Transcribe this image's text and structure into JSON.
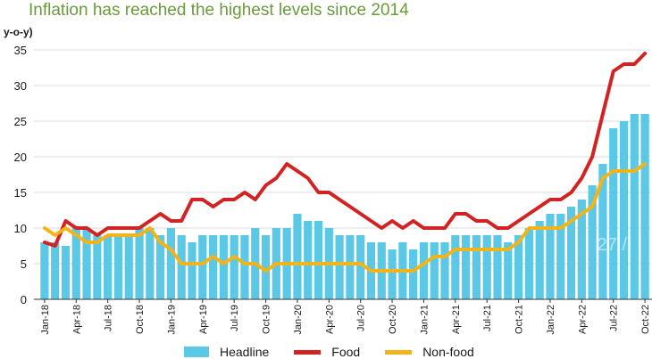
{
  "title": "Inflation has reached the highest levels since 2014",
  "unit_label": "y-o-y)",
  "watermark": "27 /",
  "colors": {
    "headline": "#5bc8e6",
    "food": "#d32222",
    "nonfood": "#f2b418",
    "title": "#6a9a3c"
  },
  "chart_data": {
    "type": "bar",
    "title": "Inflation has reached the highest levels since 2014",
    "ylabel": "y-o-y)",
    "xlabel": "",
    "ylim": [
      0,
      35
    ],
    "yticks": [
      0,
      5,
      10,
      15,
      20,
      25,
      30,
      35
    ],
    "grid": true,
    "legend_position": "bottom",
    "xtick_labels": [
      {
        "index": 0,
        "label": "Jan-18"
      },
      {
        "index": 3,
        "label": "Apr-18"
      },
      {
        "index": 6,
        "label": "Jul-18"
      },
      {
        "index": 9,
        "label": "Oct-18"
      },
      {
        "index": 12,
        "label": "Jan-19"
      },
      {
        "index": 15,
        "label": "Apr-19"
      },
      {
        "index": 18,
        "label": "Jul-19"
      },
      {
        "index": 21,
        "label": "Oct-19"
      },
      {
        "index": 24,
        "label": "Jan-20"
      },
      {
        "index": 27,
        "label": "Apr-20"
      },
      {
        "index": 30,
        "label": "Jul-20"
      },
      {
        "index": 33,
        "label": "Oct-20"
      },
      {
        "index": 36,
        "label": "Jan-21"
      },
      {
        "index": 39,
        "label": "Apr-21"
      },
      {
        "index": 42,
        "label": "Jul-21"
      },
      {
        "index": 45,
        "label": "Oct-21"
      },
      {
        "index": 48,
        "label": "Jan-22"
      },
      {
        "index": 51,
        "label": "Apr-22"
      },
      {
        "index": 54,
        "label": "Jul-22"
      },
      {
        "index": 57,
        "label": "Oct-22"
      }
    ],
    "months": [
      "Jan-18",
      "Feb-18",
      "Mar-18",
      "Apr-18",
      "May-18",
      "Jun-18",
      "Jul-18",
      "Aug-18",
      "Sep-18",
      "Oct-18",
      "Nov-18",
      "Dec-18",
      "Jan-19",
      "Feb-19",
      "Mar-19",
      "Apr-19",
      "May-19",
      "Jun-19",
      "Jul-19",
      "Aug-19",
      "Sep-19",
      "Oct-19",
      "Nov-19",
      "Dec-19",
      "Jan-20",
      "Feb-20",
      "Mar-20",
      "Apr-20",
      "May-20",
      "Jun-20",
      "Jul-20",
      "Aug-20",
      "Sep-20",
      "Oct-20",
      "Nov-20",
      "Dec-20",
      "Jan-21",
      "Feb-21",
      "Mar-21",
      "Apr-21",
      "May-21",
      "Jun-21",
      "Jul-21",
      "Aug-21",
      "Sep-21",
      "Oct-21",
      "Nov-21",
      "Dec-21",
      "Jan-22",
      "Feb-22",
      "Mar-22",
      "Apr-22",
      "May-22",
      "Jun-22",
      "Jul-22",
      "Aug-22",
      "Sep-22",
      "Oct-22"
    ],
    "series": [
      {
        "name": "Headline",
        "type": "bar",
        "values": [
          8,
          8,
          7.5,
          10,
          10,
          9,
          9,
          9,
          9,
          10,
          10,
          9,
          10,
          9,
          8,
          9,
          9,
          9,
          9,
          9,
          10,
          9,
          10,
          10,
          12,
          11,
          11,
          10,
          9,
          9,
          9,
          8,
          8,
          7,
          8,
          7,
          8,
          8,
          8,
          9,
          9,
          9,
          9,
          9,
          8,
          9,
          10,
          11,
          12,
          12,
          13,
          14,
          16,
          19,
          24,
          25,
          26,
          26
        ]
      },
      {
        "name": "Food",
        "type": "line",
        "values": [
          8,
          7.5,
          11,
          10,
          10,
          9,
          10,
          10,
          10,
          10,
          11,
          12,
          11,
          11,
          14,
          14,
          13,
          14,
          14,
          15,
          14,
          16,
          17,
          19,
          18,
          17,
          15,
          15,
          14,
          13,
          12,
          11,
          10,
          11,
          10,
          11,
          10,
          10,
          10,
          12,
          12,
          11,
          11,
          10,
          10,
          11,
          12,
          13,
          14,
          14,
          15,
          17,
          20,
          26,
          32,
          33,
          33,
          34.5
        ]
      },
      {
        "name": "Non-food",
        "type": "line",
        "values": [
          10,
          9,
          10,
          9,
          8,
          8,
          9,
          9,
          9,
          9,
          10,
          8,
          7,
          5,
          5,
          5,
          6,
          5,
          6,
          5,
          5,
          4,
          5,
          5,
          5,
          5,
          5,
          5,
          5,
          5,
          5,
          4,
          4,
          4,
          4,
          4,
          5,
          6,
          6,
          7,
          7,
          7,
          7,
          7,
          7,
          8,
          10,
          10,
          10,
          10,
          11,
          12,
          13,
          17,
          18,
          18,
          18,
          19
        ]
      }
    ]
  },
  "legend": [
    {
      "label": "Headline"
    },
    {
      "label": "Food"
    },
    {
      "label": "Non-food"
    }
  ]
}
